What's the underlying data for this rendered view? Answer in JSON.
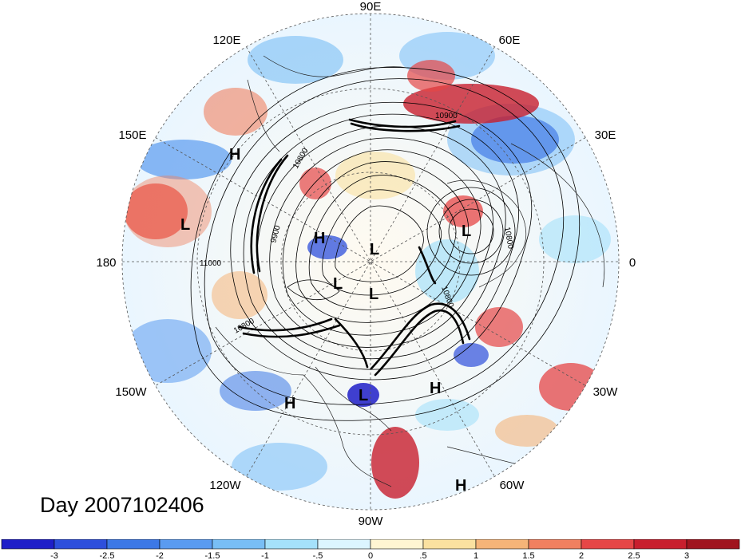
{
  "title": "Day 2007102406",
  "longitude_labels": [
    "90E",
    "60E",
    "30E",
    "0",
    "30W",
    "60W",
    "90W",
    "120W",
    "150W",
    "180",
    "150E",
    "120E"
  ],
  "systems": {
    "highs": [
      "H",
      "H",
      "H",
      "H",
      "H"
    ],
    "lows": [
      "L",
      "L",
      "L",
      "L",
      "L",
      "L"
    ]
  },
  "contour_labels": [
    "10900",
    "10800",
    "10800",
    "9900",
    "11000",
    "10800",
    "10800"
  ],
  "colorbar": {
    "ticks": [
      "-3",
      "-2.5",
      "-2",
      "-1.5",
      "-1",
      "-.5",
      "0",
      ".5",
      "1",
      "1.5",
      "2",
      "2.5",
      "3"
    ],
    "colors": [
      "#1e1ec8",
      "#2d4fdc",
      "#3c78e6",
      "#5a9bf0",
      "#78bef5",
      "#a5e1fa",
      "#dcf5ff",
      "#fff5d2",
      "#fae1a0",
      "#f5b478",
      "#f08060",
      "#e64646",
      "#c81e2d",
      "#a0141e"
    ]
  }
}
